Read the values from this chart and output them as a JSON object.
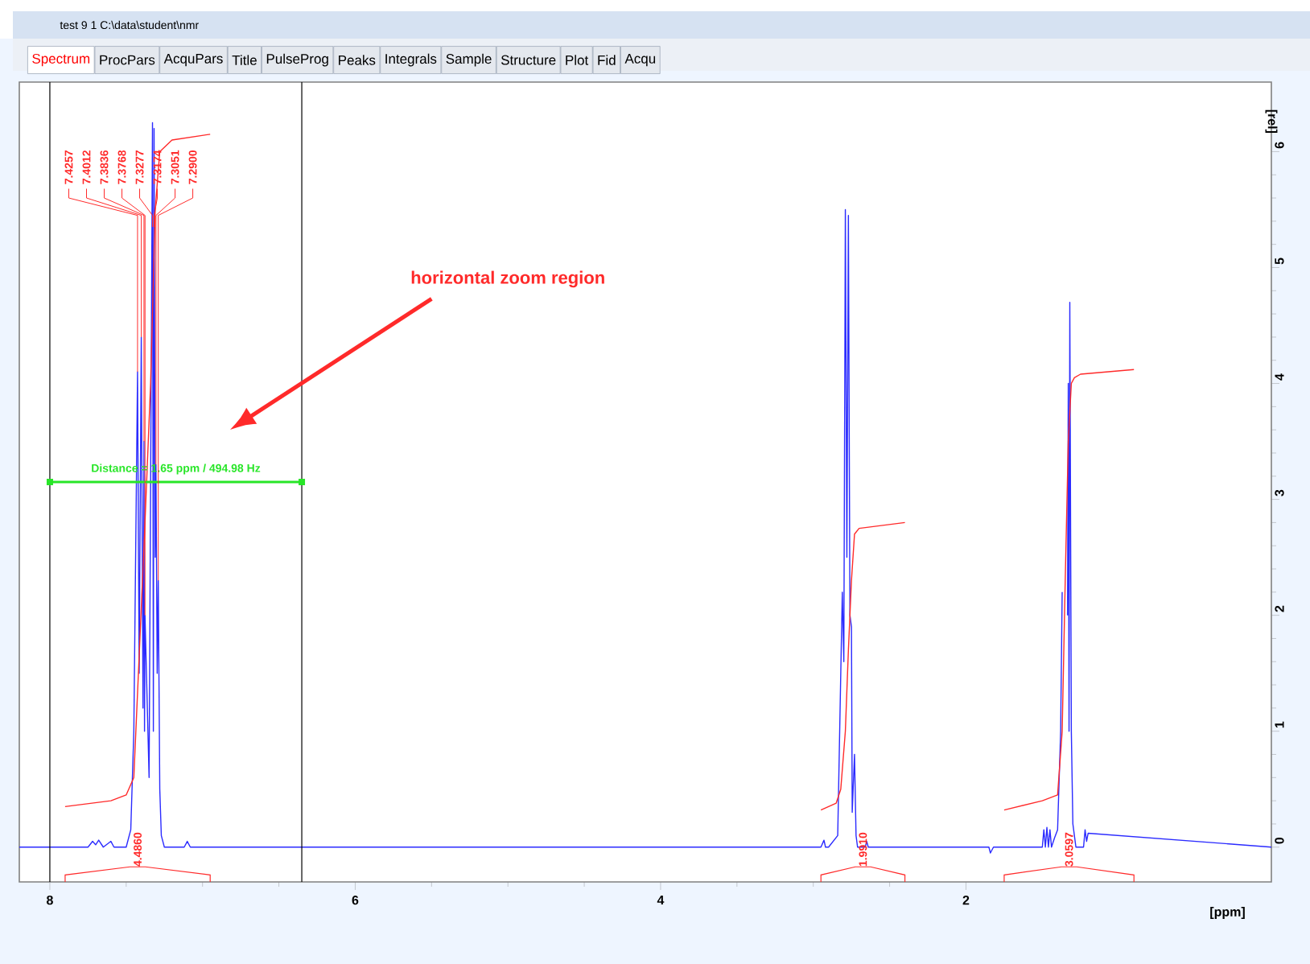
{
  "chart_data": {
    "type": "line",
    "title": "test 9 1 C:\\data\\student\\nmr",
    "xlabel": "[ppm]",
    "ylabel": "[rel]",
    "xlim": [
      8.2,
      0
    ],
    "ylim": [
      -0.3,
      6.6
    ],
    "xticks": [
      8,
      6,
      4,
      2
    ],
    "yticks": [
      0,
      1,
      2,
      3,
      4,
      5,
      6
    ],
    "grid": false,
    "marker": "none",
    "line_style": "solid",
    "series": [
      {
        "color": "#2b2bff",
        "x": [
          8.2,
          7.75,
          7.72,
          7.7,
          7.68,
          7.65,
          7.6,
          7.58,
          7.5,
          7.47,
          7.45,
          7.4257,
          7.415,
          7.4012,
          7.39,
          7.3836,
          7.38,
          7.3768,
          7.35,
          7.3277,
          7.322,
          7.3174,
          7.31,
          7.3051,
          7.297,
          7.29,
          7.28,
          7.27,
          7.25,
          7.12,
          7.1,
          7.08,
          7.0,
          2.95,
          2.93,
          2.92,
          2.9,
          2.84,
          2.81,
          2.8,
          2.79,
          2.78,
          2.77,
          2.76,
          2.75,
          2.745,
          2.73,
          2.72,
          2.71,
          2.7,
          2.66,
          2.65,
          2.64,
          1.85,
          1.84,
          1.82,
          1.5,
          1.49,
          1.48,
          1.47,
          1.46,
          1.45,
          1.44,
          1.42,
          1.4,
          1.38,
          1.37,
          1.36,
          1.355,
          1.35,
          1.345,
          1.34,
          1.335,
          1.33,
          1.325,
          1.32,
          1.31,
          1.3,
          1.28,
          1.23,
          1.22,
          1.21,
          1.2,
          0
        ],
        "values": [
          0,
          0,
          0.05,
          0.02,
          0.06,
          0,
          0.05,
          0,
          0,
          0.15,
          1.0,
          4.1,
          1.5,
          4.4,
          1.2,
          3.5,
          1.0,
          2.0,
          0.6,
          6.25,
          1.0,
          6.2,
          2.5,
          3.3,
          1.5,
          2.3,
          0.5,
          0.1,
          0,
          0,
          0.05,
          0,
          0,
          0,
          0.06,
          0,
          0,
          0.1,
          2.2,
          1.6,
          5.5,
          2.5,
          5.45,
          2.0,
          1.9,
          0.3,
          0.8,
          0.1,
          0,
          0,
          0,
          0.05,
          0,
          0,
          -0.05,
          0,
          0,
          0.15,
          0,
          0.17,
          0,
          0.15,
          0,
          0.08,
          0.15,
          1.0,
          2.2,
          null,
          null,
          null,
          null,
          null,
          2.0,
          4.0,
          1.0,
          4.7,
          1.0,
          0.2,
          0,
          0,
          0.15,
          0.05,
          0.12,
          0
        ]
      },
      {
        "color": "#ff2a2a",
        "x": [
          7.9,
          7.6,
          7.5,
          7.45,
          7.42,
          7.38,
          7.34,
          7.31,
          7.28,
          7.2,
          6.95
        ],
        "values": [
          0.35,
          0.4,
          0.45,
          0.6,
          1.5,
          2.7,
          4.0,
          5.5,
          6.0,
          6.1,
          6.15
        ]
      },
      {
        "color": "#ff2a2a",
        "x": [
          2.95,
          2.85,
          2.82,
          2.79,
          2.77,
          2.75,
          2.73,
          2.7,
          2.4
        ],
        "values": [
          0.32,
          0.38,
          0.5,
          1.0,
          1.7,
          2.3,
          2.7,
          2.75,
          2.8
        ]
      },
      {
        "color": "#ff2a2a",
        "x": [
          1.75,
          1.5,
          1.4,
          1.37,
          1.35,
          1.33,
          1.31,
          1.29,
          1.25,
          0.9
        ],
        "values": [
          0.32,
          0.4,
          0.45,
          1.0,
          2.3,
          3.5,
          4.0,
          4.05,
          4.08,
          4.12
        ]
      }
    ],
    "ref_lines": [
      {
        "axis": "x",
        "value": 8.0,
        "color": "#000000"
      },
      {
        "axis": "x",
        "value": 6.35,
        "color": "#000000"
      }
    ],
    "annotations": [
      "horizontal zoom region",
      "Distance = 1.65 ppm / 494.98 Hz",
      {
        "text": "7.4257",
        "x": 7.4257,
        "y": 4.1
      },
      {
        "text": "7.4012",
        "x": 7.4012,
        "y": 4.4
      },
      {
        "text": "7.3836",
        "x": 7.3836,
        "y": 3.5
      },
      {
        "text": "7.3768",
        "x": 7.3768,
        "y": 2.0
      },
      {
        "text": "7.3277",
        "x": 7.3277,
        "y": 5.35
      },
      {
        "text": "7.3174",
        "x": 7.3174,
        "y": 5.35
      },
      {
        "text": "7.3051",
        "x": 7.3051,
        "y": 3.3
      },
      {
        "text": "7.2900",
        "x": 7.29,
        "y": 2.3
      },
      "4.4860",
      "1.9910",
      "3.0597",
      "Spectrum",
      "ProcPars",
      "AcquPars",
      "Title",
      "PulseProg",
      "Peaks",
      "Integrals",
      "Sample",
      "Structure",
      "Plot",
      "Fid",
      "Acqu"
    ]
  }
}
